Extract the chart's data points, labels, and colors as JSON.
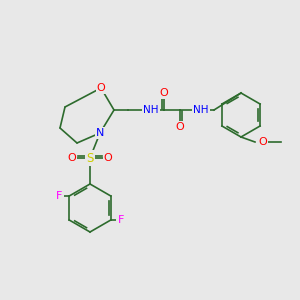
{
  "bg_color": "#e8e8e8",
  "bond_color": "#2d6b2d",
  "atom_colors": {
    "O": "#ff0000",
    "N": "#0000ff",
    "S": "#cccc00",
    "F": "#ff00ff",
    "H": "#808080",
    "C": "#2d6b2d"
  },
  "line_width": 1.2,
  "font_size": 7.5
}
